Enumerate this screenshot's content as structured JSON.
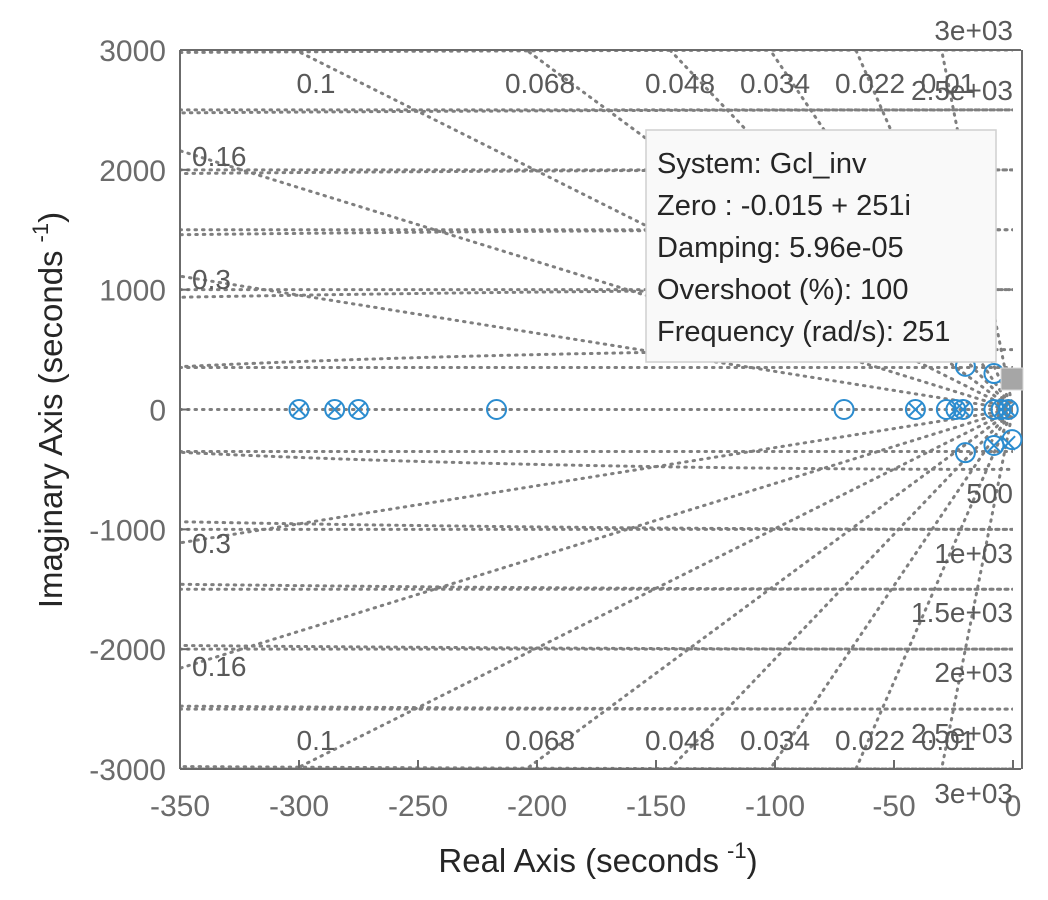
{
  "chart_data": {
    "type": "scatter",
    "subtype": "pole-zero map",
    "xlabel": "Real Axis (seconds",
    "xlabel_sup": "-1",
    "xlabel_tail": ")",
    "ylabel": "Imaginary Axis (seconds",
    "ylabel_sup": "-1",
    "ylabel_tail": ")",
    "xlim": [
      -350,
      0
    ],
    "ylim": [
      -3000,
      3000
    ],
    "xticks": [
      -350,
      -300,
      -250,
      -200,
      -150,
      -100,
      -50,
      0
    ],
    "xtick_labels": [
      "-350",
      "-300",
      "-250",
      "-200",
      "-150",
      "-100",
      "-50",
      "0"
    ],
    "yticks": [
      3000,
      2000,
      1000,
      0,
      -1000,
      -2000,
      -3000
    ],
    "ytick_labels": [
      "3000",
      "2000",
      "1000",
      "0",
      "-1000",
      "-2000",
      "-3000"
    ],
    "grid": true,
    "damping_grid": [
      0.1,
      0.068,
      0.048,
      0.034,
      0.022,
      0.01,
      0.16,
      0.3
    ],
    "damping_labels_top": [
      {
        "zeta": 0.1,
        "text": "0.1"
      },
      {
        "zeta": 0.068,
        "text": "0.068"
      },
      {
        "zeta": 0.048,
        "text": "0.048"
      },
      {
        "zeta": 0.034,
        "text": "0.034"
      },
      {
        "zeta": 0.022,
        "text": "0.022"
      },
      {
        "zeta": 0.01,
        "text": "0.01"
      }
    ],
    "damping_labels_left": [
      {
        "zeta": 0.16,
        "text": "0.16"
      },
      {
        "zeta": 0.3,
        "text": "0.3"
      }
    ],
    "frequency_grid": [
      500,
      1000,
      1500,
      2000,
      2500,
      3000
    ],
    "frequency_labels_bottom": [
      "500",
      "1e+03",
      "1.5e+03",
      "2e+03",
      "2.5e+03",
      "3e+03"
    ],
    "frequency_labels_top": [
      "3e+03",
      "2.5e+03"
    ],
    "series": [
      {
        "name": "Zeros",
        "marker": "circle",
        "points": [
          [
            -300,
            0
          ],
          [
            -285,
            0
          ],
          [
            -275,
            0
          ],
          [
            -217,
            0
          ],
          [
            -71,
            0
          ],
          [
            -41,
            0
          ],
          [
            -28,
            0
          ],
          [
            -24,
            0
          ],
          [
            -21,
            0
          ],
          [
            -8,
            0
          ],
          [
            -5,
            0
          ],
          [
            -2,
            0
          ],
          [
            -20,
            360
          ],
          [
            -20,
            -360
          ],
          [
            -8,
            300
          ],
          [
            -8,
            -300
          ],
          [
            -0.015,
            251
          ],
          [
            -0.015,
            -251
          ]
        ]
      },
      {
        "name": "Poles",
        "marker": "cross",
        "points": [
          [
            -300,
            0
          ],
          [
            -285,
            0
          ],
          [
            -275,
            0
          ],
          [
            -41,
            0
          ],
          [
            -24,
            0
          ],
          [
            -21,
            0
          ],
          [
            -5,
            0
          ],
          [
            -2,
            0
          ],
          [
            -8,
            -300
          ],
          [
            -2,
            -280
          ]
        ]
      }
    ],
    "datatip": {
      "system": "System: Gcl_inv",
      "zero": "Zero : -0.015 + 251i",
      "damping": "Damping: 5.96e-05",
      "overshoot": "Overshoot (%): 100",
      "frequency": "Frequency (rad/s): 251",
      "anchor": [
        -0.015,
        251
      ]
    },
    "colors": {
      "marker": "#2b8ccf",
      "grid": "#7f7f7f",
      "axis": "#6b6b6b"
    }
  }
}
